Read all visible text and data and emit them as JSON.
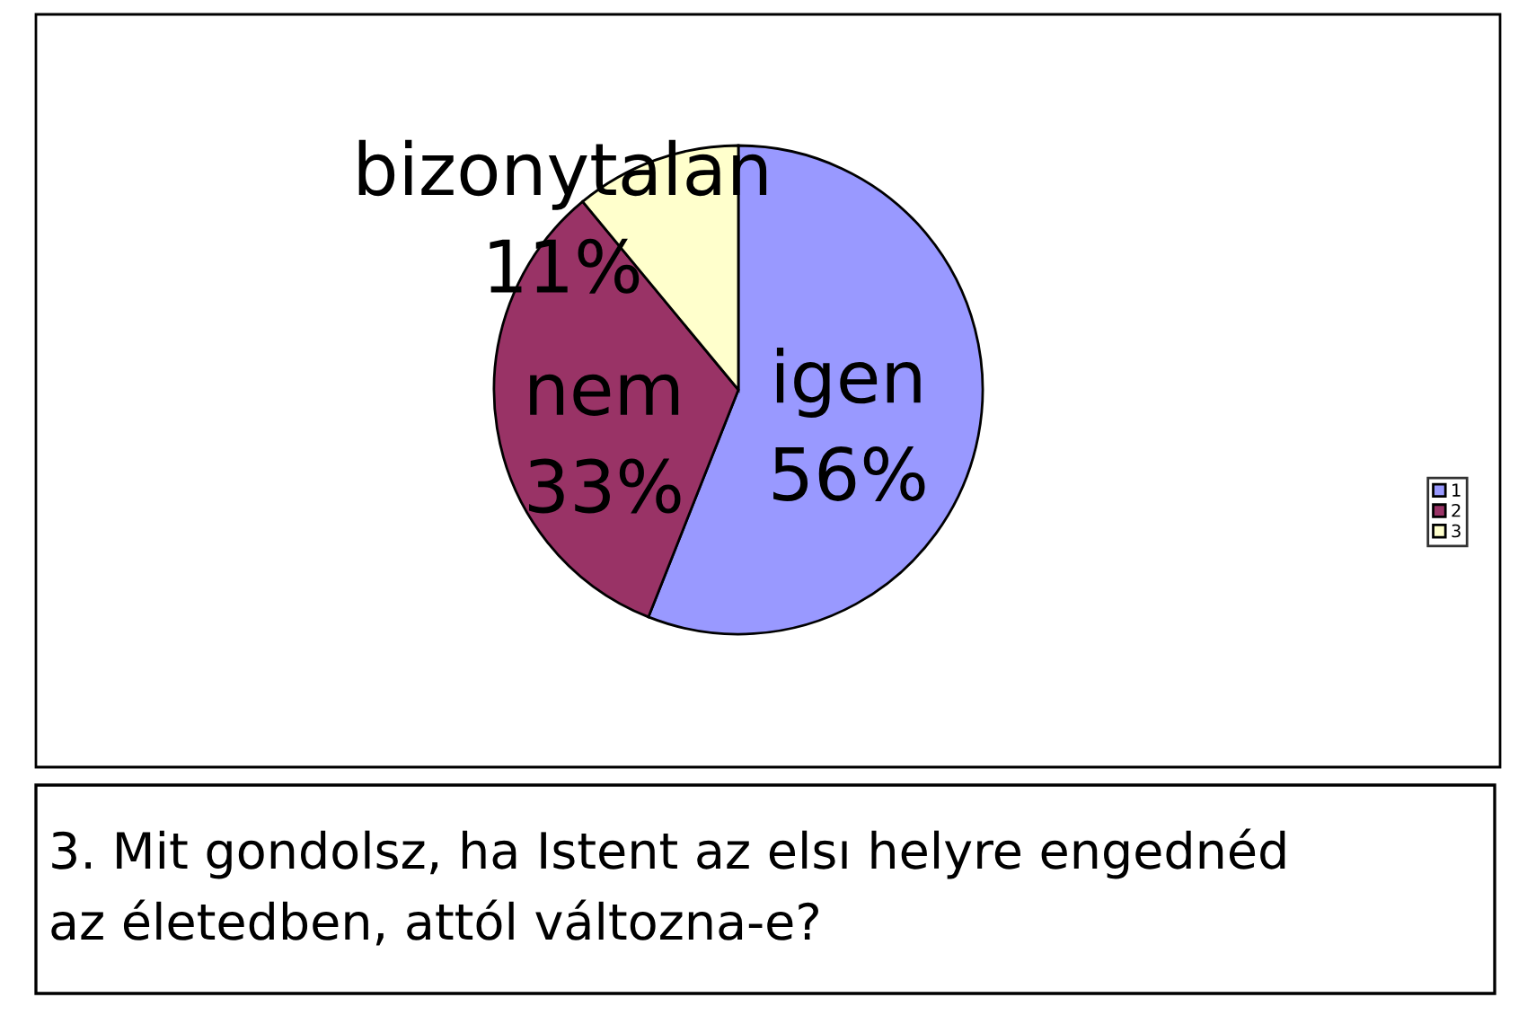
{
  "chart_data": {
    "type": "pie",
    "title": "3. Mit gondolsz, ha Istent az elsı helyre engednéd\naz életedben, attól változna-e?",
    "categories": [
      "1",
      "2",
      "3"
    ],
    "values": [
      56,
      33,
      11
    ],
    "colors": [
      "#9999ff",
      "#993366",
      "#ffffcc"
    ],
    "value_labels": [
      "igen\n56%",
      "nem\n33%",
      "bizonytalan\n11%"
    ],
    "legend": "right"
  }
}
